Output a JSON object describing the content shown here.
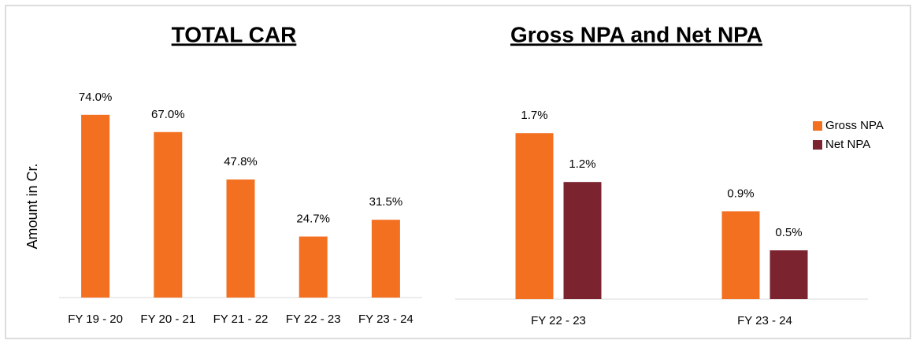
{
  "chart_data": [
    {
      "type": "bar",
      "title": "TOTAL CAR",
      "y_label": "Amount in Cr.",
      "categories": [
        "FY 19 - 20",
        "FY 20 - 21",
        "FY 21 - 22",
        "FY 22 - 23",
        "FY 23 - 24"
      ],
      "values": [
        74.0,
        67.0,
        47.8,
        24.7,
        31.5
      ],
      "value_labels": [
        "74.0%",
        "67.0%",
        "47.8%",
        "24.7%",
        "31.5%"
      ],
      "color": "#f37021",
      "ylim": [
        0,
        80
      ]
    },
    {
      "type": "bar",
      "title": "Gross NPA and Net NPA",
      "categories": [
        "FY 22 - 23",
        "FY 23 - 24"
      ],
      "series": [
        {
          "name": "Gross NPA",
          "color": "#f37021",
          "values": [
            1.7,
            0.9
          ],
          "value_labels": [
            "1.7%",
            "0.9%"
          ]
        },
        {
          "name": "Net NPA",
          "color": "#7b2430",
          "values": [
            1.2,
            0.5
          ],
          "value_labels": [
            "1.2%",
            "0.5%"
          ]
        }
      ],
      "ylim": [
        0,
        2
      ],
      "legend": "right"
    }
  ]
}
